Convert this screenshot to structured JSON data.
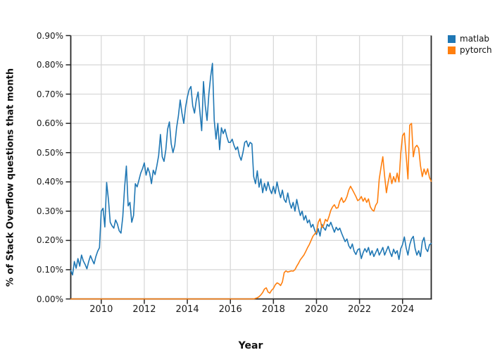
{
  "chart_data": {
    "type": "line",
    "title": "",
    "xlabel": "Year",
    "ylabel": "% of Stack Overflow questions that month",
    "x_start": "2008-08",
    "x_step": "1 month",
    "xlim": [
      2008.583,
      2025.333
    ],
    "ylim": [
      0,
      0.9
    ],
    "grid": true,
    "grid_color": "#d9d9d9",
    "axis_color": "#262626",
    "background_color": "#ffffff",
    "legend_position": "top-right-outside",
    "xticks": [
      2010,
      2012,
      2014,
      2016,
      2018,
      2020,
      2022,
      2024
    ],
    "xtick_labels": [
      "2010",
      "2012",
      "2014",
      "2016",
      "2018",
      "2020",
      "2022",
      "2024"
    ],
    "yticks": [
      0.0,
      0.1,
      0.2,
      0.3,
      0.4,
      0.5,
      0.6,
      0.7,
      0.8,
      0.9
    ],
    "ytick_labels": [
      "0.00%",
      "0.10%",
      "0.20%",
      "0.30%",
      "0.40%",
      "0.50%",
      "0.60%",
      "0.70%",
      "0.80%",
      "0.90%"
    ],
    "unit": "percent of Stack Overflow questions per month",
    "series": [
      {
        "name": "matlab",
        "color": "#1f77b4",
        "values": [
          0.098,
          0.082,
          0.128,
          0.105,
          0.138,
          0.112,
          0.15,
          0.13,
          0.118,
          0.103,
          0.128,
          0.148,
          0.133,
          0.12,
          0.145,
          0.163,
          0.175,
          0.3,
          0.31,
          0.246,
          0.398,
          0.34,
          0.262,
          0.25,
          0.242,
          0.27,
          0.256,
          0.233,
          0.225,
          0.28,
          0.38,
          0.454,
          0.318,
          0.33,
          0.262,
          0.285,
          0.394,
          0.383,
          0.406,
          0.43,
          0.445,
          0.465,
          0.423,
          0.448,
          0.43,
          0.394,
          0.44,
          0.425,
          0.455,
          0.49,
          0.562,
          0.486,
          0.47,
          0.51,
          0.58,
          0.605,
          0.53,
          0.5,
          0.525,
          0.585,
          0.625,
          0.68,
          0.635,
          0.6,
          0.655,
          0.69,
          0.715,
          0.726,
          0.66,
          0.635,
          0.68,
          0.707,
          0.64,
          0.575,
          0.743,
          0.66,
          0.61,
          0.7,
          0.76,
          0.805,
          0.61,
          0.546,
          0.6,
          0.51,
          0.585,
          0.565,
          0.58,
          0.555,
          0.535,
          0.535,
          0.546,
          0.525,
          0.51,
          0.52,
          0.49,
          0.474,
          0.5,
          0.535,
          0.54,
          0.52,
          0.535,
          0.53,
          0.418,
          0.394,
          0.438,
          0.382,
          0.41,
          0.363,
          0.395,
          0.37,
          0.4,
          0.375,
          0.36,
          0.385,
          0.36,
          0.4,
          0.37,
          0.346,
          0.372,
          0.34,
          0.33,
          0.362,
          0.33,
          0.31,
          0.33,
          0.3,
          0.34,
          0.31,
          0.285,
          0.3,
          0.27,
          0.285,
          0.26,
          0.27,
          0.245,
          0.255,
          0.235,
          0.22,
          0.24,
          0.215,
          0.255,
          0.243,
          0.235,
          0.255,
          0.248,
          0.262,
          0.245,
          0.228,
          0.245,
          0.235,
          0.242,
          0.225,
          0.21,
          0.196,
          0.205,
          0.182,
          0.172,
          0.188,
          0.163,
          0.152,
          0.168,
          0.172,
          0.138,
          0.158,
          0.172,
          0.16,
          0.176,
          0.15,
          0.165,
          0.145,
          0.158,
          0.172,
          0.15,
          0.162,
          0.176,
          0.15,
          0.165,
          0.18,
          0.16,
          0.145,
          0.17,
          0.155,
          0.165,
          0.135,
          0.172,
          0.186,
          0.212,
          0.175,
          0.15,
          0.185,
          0.205,
          0.214,
          0.172,
          0.15,
          0.165,
          0.145,
          0.195,
          0.21,
          0.172,
          0.162,
          0.185,
          0.19
        ]
      },
      {
        "name": "pytorch",
        "color": "#ff7f0e",
        "values": [
          0,
          0,
          0,
          0,
          0,
          0,
          0,
          0,
          0,
          0,
          0,
          0,
          0,
          0,
          0,
          0,
          0,
          0,
          0,
          0,
          0,
          0,
          0,
          0,
          0,
          0,
          0,
          0,
          0,
          0,
          0,
          0,
          0,
          0,
          0,
          0,
          0,
          0,
          0,
          0,
          0,
          0,
          0,
          0,
          0,
          0,
          0,
          0,
          0,
          0,
          0,
          0,
          0,
          0,
          0,
          0,
          0,
          0,
          0,
          0,
          0,
          0,
          0,
          0,
          0,
          0,
          0,
          0,
          0,
          0,
          0,
          0,
          0,
          0,
          0,
          0,
          0,
          0,
          0,
          0,
          0,
          0,
          0,
          0,
          0,
          0,
          0,
          0,
          0,
          0,
          0,
          0,
          0,
          0,
          0,
          0,
          0,
          0,
          0,
          0,
          0,
          0,
          0,
          0.002,
          0.004,
          0.008,
          0.014,
          0.022,
          0.034,
          0.038,
          0.024,
          0.02,
          0.03,
          0.036,
          0.048,
          0.055,
          0.052,
          0.046,
          0.058,
          0.09,
          0.096,
          0.092,
          0.094,
          0.096,
          0.095,
          0.1,
          0.112,
          0.122,
          0.134,
          0.142,
          0.15,
          0.162,
          0.175,
          0.186,
          0.2,
          0.214,
          0.222,
          0.228,
          0.262,
          0.274,
          0.243,
          0.252,
          0.272,
          0.265,
          0.282,
          0.303,
          0.315,
          0.322,
          0.31,
          0.312,
          0.334,
          0.346,
          0.33,
          0.336,
          0.35,
          0.372,
          0.385,
          0.374,
          0.362,
          0.35,
          0.336,
          0.34,
          0.35,
          0.334,
          0.345,
          0.33,
          0.342,
          0.315,
          0.305,
          0.3,
          0.32,
          0.33,
          0.41,
          0.45,
          0.486,
          0.42,
          0.363,
          0.4,
          0.43,
          0.394,
          0.418,
          0.4,
          0.43,
          0.4,
          0.498,
          0.558,
          0.567,
          0.49,
          0.41,
          0.594,
          0.6,
          0.486,
          0.518,
          0.525,
          0.515,
          0.455,
          0.418,
          0.444,
          0.425,
          0.445,
          0.415,
          0.402
        ]
      }
    ]
  },
  "legend": {
    "items": [
      {
        "label": "matlab",
        "color": "#1f77b4"
      },
      {
        "label": "pytorch",
        "color": "#ff7f0e"
      }
    ]
  }
}
